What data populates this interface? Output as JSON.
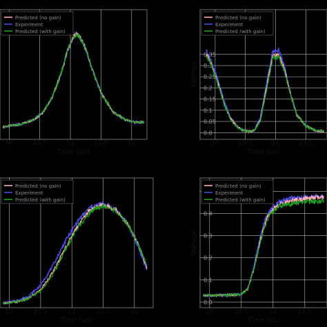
{
  "chart_data": [
    {
      "type": "line",
      "panel": "top-left",
      "title": "",
      "xlabel": "Time (µs)",
      "ylabel": "",
      "xlim": [
        9.85,
        12.25
      ],
      "ylim": [
        -0.05,
        0.48
      ],
      "xticks": [
        10.0,
        10.5,
        11.0,
        11.5,
        12.0
      ],
      "xtick_labels": [
        "10",
        "10.5",
        "11",
        "11.5",
        "12"
      ],
      "yticks": [],
      "ytick_labels": [],
      "grid": true,
      "legend_position": "top-left",
      "legend": [
        "Predicted (no gain)",
        "Experiment",
        "Predicted (with gain)"
      ],
      "series": [
        {
          "name": "Predicted (no gain)",
          "color": "#ffb0b0",
          "x": [
            9.9,
            10.0,
            10.2,
            10.4,
            10.55,
            10.7,
            10.85,
            10.95,
            11.05,
            11.1,
            11.15,
            11.25,
            11.35,
            11.5,
            11.7,
            11.9,
            12.05,
            12.2
          ],
          "y": [
            0.0,
            0.005,
            0.012,
            0.03,
            0.06,
            0.12,
            0.22,
            0.31,
            0.37,
            0.38,
            0.37,
            0.32,
            0.24,
            0.14,
            0.06,
            0.03,
            0.02,
            0.02
          ]
        },
        {
          "name": "Experiment",
          "color": "#4a4adc",
          "x": [
            9.9,
            10.0,
            10.2,
            10.4,
            10.55,
            10.7,
            10.85,
            10.95,
            11.05,
            11.1,
            11.15,
            11.25,
            11.35,
            11.5,
            11.7,
            11.9,
            12.05,
            12.2
          ],
          "y": [
            0.0,
            0.005,
            0.012,
            0.03,
            0.06,
            0.12,
            0.22,
            0.31,
            0.37,
            0.385,
            0.37,
            0.32,
            0.24,
            0.14,
            0.06,
            0.03,
            0.02,
            0.02
          ]
        },
        {
          "name": "Predicted (with gain)",
          "color": "#1ea01e",
          "x": [
            9.9,
            10.0,
            10.2,
            10.4,
            10.55,
            10.7,
            10.85,
            10.95,
            11.05,
            11.1,
            11.15,
            11.25,
            11.35,
            11.5,
            11.7,
            11.9,
            12.05,
            12.2
          ],
          "y": [
            0.0,
            0.005,
            0.012,
            0.03,
            0.06,
            0.12,
            0.22,
            0.31,
            0.37,
            0.38,
            0.37,
            0.32,
            0.24,
            0.14,
            0.06,
            0.03,
            0.02,
            0.02
          ]
        }
      ]
    },
    {
      "type": "line",
      "panel": "top-right",
      "title": "",
      "xlabel": "Time (µs)",
      "ylabel": "Voltage",
      "xlim": [
        9.75,
        11.85
      ],
      "ylim": [
        -0.03,
        0.55
      ],
      "xticks": [
        10.0,
        10.5,
        11.0,
        11.5
      ],
      "xtick_labels": [
        "10",
        "10.5",
        "11",
        "11.5"
      ],
      "yticks": [
        0.0,
        0.05,
        0.1,
        0.15,
        0.2,
        0.25,
        0.3,
        0.35
      ],
      "ytick_labels": [
        "0.0",
        "0.05",
        "0.1",
        "0.15",
        "0.2",
        "0.25",
        "0.3",
        "0.35"
      ],
      "grid": true,
      "legend_position": "top-left",
      "legend": [
        "Predicted (no gain)",
        "Experiment",
        "Predicted (with gain)"
      ],
      "series": [
        {
          "name": "Predicted (no gain)",
          "color": "#ffb0b0",
          "x": [
            9.85,
            9.95,
            10.05,
            10.15,
            10.25,
            10.35,
            10.45,
            10.55,
            10.65,
            10.75,
            10.85,
            10.95,
            11.05,
            11.15,
            11.25,
            11.35,
            11.5,
            11.65,
            11.8
          ],
          "y": [
            0.355,
            0.3,
            0.22,
            0.13,
            0.065,
            0.03,
            0.012,
            0.005,
            0.01,
            0.06,
            0.2,
            0.34,
            0.35,
            0.28,
            0.17,
            0.08,
            0.03,
            0.01,
            0.005
          ]
        },
        {
          "name": "Experiment",
          "color": "#4a4adc",
          "x": [
            9.85,
            9.95,
            10.05,
            10.15,
            10.25,
            10.35,
            10.45,
            10.55,
            10.65,
            10.75,
            10.85,
            10.95,
            11.05,
            11.15,
            11.25,
            11.35,
            11.5,
            11.65,
            11.8
          ],
          "y": [
            0.37,
            0.31,
            0.23,
            0.14,
            0.07,
            0.03,
            0.012,
            0.005,
            0.01,
            0.07,
            0.22,
            0.36,
            0.37,
            0.29,
            0.17,
            0.08,
            0.03,
            0.01,
            0.005
          ]
        },
        {
          "name": "Predicted (with gain)",
          "color": "#1ea01e",
          "x": [
            9.85,
            9.95,
            10.05,
            10.15,
            10.25,
            10.35,
            10.45,
            10.55,
            10.65,
            10.75,
            10.85,
            10.95,
            11.05,
            11.15,
            11.25,
            11.35,
            11.5,
            11.65,
            11.8
          ],
          "y": [
            0.35,
            0.29,
            0.21,
            0.125,
            0.06,
            0.028,
            0.011,
            0.005,
            0.01,
            0.055,
            0.19,
            0.33,
            0.34,
            0.27,
            0.165,
            0.08,
            0.03,
            0.01,
            0.005
          ]
        }
      ]
    },
    {
      "type": "line",
      "panel": "bottom-left",
      "title": "",
      "xlabel": "Time (µs)",
      "ylabel": "",
      "xlim": [
        9.85,
        12.3
      ],
      "ylim": [
        -0.02,
        0.56
      ],
      "xticks": [
        10.0,
        10.5,
        11.0,
        11.5,
        12.0
      ],
      "xtick_labels": [
        "10",
        "10.5",
        "11",
        "11.5",
        "12"
      ],
      "yticks": [],
      "ytick_labels": [],
      "grid": true,
      "legend_position": "top-left",
      "legend": [
        "Predicted (no gain)",
        "Experiment",
        "Predicted (with gain)"
      ],
      "series": [
        {
          "name": "Predicted (no gain)",
          "color": "#ffb0b0",
          "x": [
            9.9,
            10.1,
            10.3,
            10.5,
            10.7,
            10.9,
            11.1,
            11.3,
            11.5,
            11.7,
            11.9,
            12.05,
            12.2
          ],
          "y": [
            0.0,
            0.005,
            0.02,
            0.06,
            0.14,
            0.25,
            0.35,
            0.42,
            0.44,
            0.42,
            0.35,
            0.27,
            0.16
          ]
        },
        {
          "name": "Experiment",
          "color": "#4a4adc",
          "x": [
            9.9,
            10.1,
            10.3,
            10.5,
            10.7,
            10.9,
            11.1,
            11.3,
            11.5,
            11.7,
            11.9,
            12.05,
            12.2
          ],
          "y": [
            0.0,
            0.01,
            0.03,
            0.08,
            0.17,
            0.28,
            0.37,
            0.43,
            0.445,
            0.42,
            0.35,
            0.26,
            0.15
          ]
        },
        {
          "name": "Predicted (with gain)",
          "color": "#1ea01e",
          "x": [
            9.9,
            10.1,
            10.3,
            10.5,
            10.7,
            10.9,
            11.1,
            11.3,
            11.5,
            11.7,
            11.9,
            12.05,
            12.2
          ],
          "y": [
            0.0,
            0.005,
            0.02,
            0.055,
            0.13,
            0.24,
            0.34,
            0.41,
            0.435,
            0.415,
            0.35,
            0.27,
            0.17
          ]
        }
      ]
    },
    {
      "type": "line",
      "panel": "bottom-right",
      "title": "",
      "xlabel": "Time (µs)",
      "ylabel": "Voltage",
      "xlim": [
        9.85,
        11.85
      ],
      "ylim": [
        -0.025,
        0.56
      ],
      "xticks": [
        10.0,
        10.5,
        11.0,
        11.5
      ],
      "xtick_labels": [
        "10",
        "10.5",
        "11",
        "11.5"
      ],
      "yticks": [
        0.0,
        0.1,
        0.2,
        0.3,
        0.4,
        0.5
      ],
      "ytick_labels": [
        "0.0",
        "0.1",
        "0.2",
        "0.3",
        "0.4",
        "0.5"
      ],
      "grid": true,
      "legend_position": "top-left",
      "legend": [
        "Predicted (no gain)",
        "Experiment",
        "Predicted (with gain)"
      ],
      "series": [
        {
          "name": "Predicted (no gain)",
          "color": "#ffb0b0",
          "x": [
            9.9,
            10.1,
            10.3,
            10.5,
            10.6,
            10.7,
            10.8,
            10.9,
            11.0,
            11.1,
            11.2,
            11.3,
            11.5,
            11.65,
            11.8
          ],
          "y": [
            0.03,
            0.03,
            0.032,
            0.035,
            0.06,
            0.15,
            0.28,
            0.38,
            0.42,
            0.44,
            0.45,
            0.46,
            0.465,
            0.47,
            0.47
          ]
        },
        {
          "name": "Experiment",
          "color": "#4a4adc",
          "x": [
            9.9,
            10.1,
            10.3,
            10.5,
            10.6,
            10.7,
            10.8,
            10.9,
            11.0,
            11.1,
            11.2,
            11.3,
            11.5,
            11.65,
            11.8
          ],
          "y": [
            0.03,
            0.03,
            0.032,
            0.035,
            0.06,
            0.16,
            0.3,
            0.39,
            0.43,
            0.45,
            0.46,
            0.47,
            0.47,
            0.475,
            0.475
          ]
        },
        {
          "name": "Predicted (with gain)",
          "color": "#1ea01e",
          "x": [
            9.9,
            10.1,
            10.3,
            10.5,
            10.6,
            10.7,
            10.8,
            10.9,
            11.0,
            11.1,
            11.2,
            11.3,
            11.5,
            11.65,
            11.8
          ],
          "y": [
            0.03,
            0.03,
            0.032,
            0.035,
            0.058,
            0.15,
            0.27,
            0.37,
            0.41,
            0.43,
            0.44,
            0.445,
            0.45,
            0.455,
            0.455
          ]
        }
      ]
    }
  ]
}
